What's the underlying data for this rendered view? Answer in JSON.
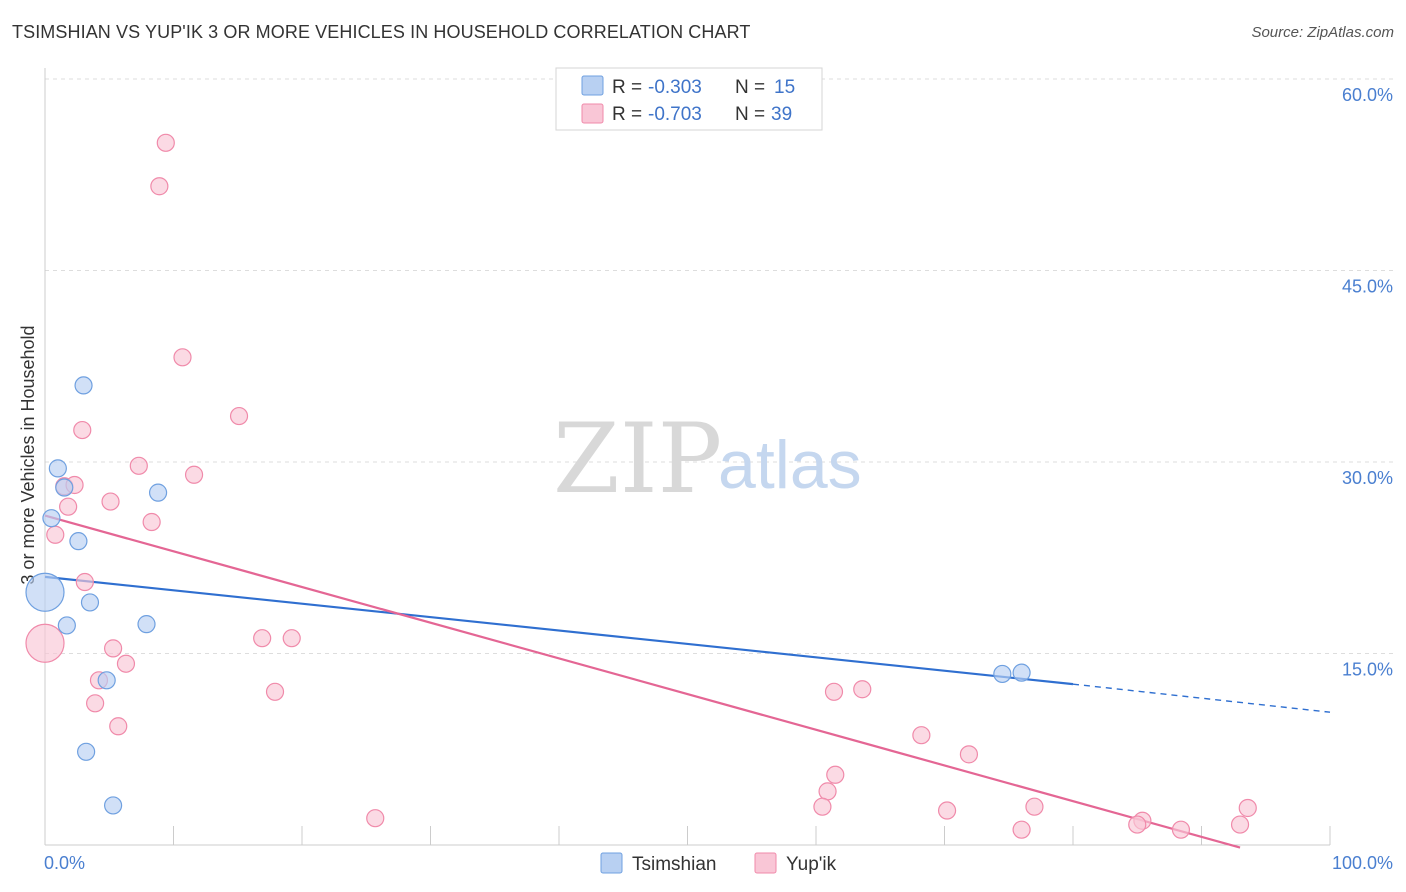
{
  "title": "TSIMSHIAN VS YUP'IK 3 OR MORE VEHICLES IN HOUSEHOLD CORRELATION CHART",
  "source": "Source: ZipAtlas.com",
  "watermark": {
    "part1": "ZIP",
    "part2": "atlas"
  },
  "colors": {
    "tsimshian": "#6fa0e0",
    "tsimshian_fill": "#b8d0f2",
    "tsimshian_line": "#2f6fd0",
    "yupik": "#f08aaa",
    "yupik_fill": "#f9c6d6",
    "yupik_line": "#e46694",
    "axis_label": "#4a7fd0"
  },
  "legend": {
    "rows": [
      {
        "r_label": "R = ",
        "r_value": "-0.303",
        "n_label": "N = ",
        "n_value": "15"
      },
      {
        "r_label": "R = ",
        "r_value": "-0.703",
        "n_label": "N = ",
        "n_value": "39"
      }
    ]
  },
  "chart_data": {
    "type": "scatter",
    "title": "TSIMSHIAN VS YUP'IK 3 OR MORE VEHICLES IN HOUSEHOLD CORRELATION CHART",
    "xlabel": "",
    "ylabel": "3 or more Vehicles in Household",
    "xlim": [
      0,
      100
    ],
    "ylim": [
      0,
      60
    ],
    "x_tick_labels": [
      "0.0%",
      "100.0%"
    ],
    "y_ticks": [
      15,
      30,
      45,
      60
    ],
    "y_tick_labels": [
      "15.0%",
      "30.0%",
      "45.0%",
      "60.0%"
    ],
    "grid": true,
    "legend_position": "top-center",
    "series": [
      {
        "name": "Tsimshian",
        "r": -0.303,
        "n": 15,
        "points": [
          {
            "x": 3.0,
            "y": 36.0,
            "big": false
          },
          {
            "x": 1.0,
            "y": 29.5,
            "big": false
          },
          {
            "x": 1.5,
            "y": 28.0,
            "big": false
          },
          {
            "x": 8.8,
            "y": 27.6,
            "big": false
          },
          {
            "x": 0.5,
            "y": 25.6,
            "big": false
          },
          {
            "x": 2.6,
            "y": 23.8,
            "big": false
          },
          {
            "x": 0.0,
            "y": 19.8,
            "big": true
          },
          {
            "x": 3.5,
            "y": 19.0,
            "big": false
          },
          {
            "x": 1.7,
            "y": 17.2,
            "big": false
          },
          {
            "x": 7.9,
            "y": 17.3,
            "big": false
          },
          {
            "x": 4.8,
            "y": 12.9,
            "big": false
          },
          {
            "x": 3.2,
            "y": 7.3,
            "big": false
          },
          {
            "x": 5.3,
            "y": 3.1,
            "big": false
          },
          {
            "x": 74.5,
            "y": 13.4,
            "big": false
          },
          {
            "x": 76.0,
            "y": 13.5,
            "big": false
          }
        ],
        "trend": {
          "x0": 0,
          "y0": 21.0,
          "x1": 80,
          "y1": 12.6,
          "dash_to_x": 100,
          "dash_to_y": 10.4
        }
      },
      {
        "name": "Yup'ik",
        "r": -0.703,
        "n": 39,
        "points": [
          {
            "x": 9.4,
            "y": 55.0,
            "big": false
          },
          {
            "x": 8.9,
            "y": 51.6,
            "big": false
          },
          {
            "x": 10.7,
            "y": 38.2,
            "big": false
          },
          {
            "x": 15.1,
            "y": 33.6,
            "big": false
          },
          {
            "x": 2.9,
            "y": 32.5,
            "big": false
          },
          {
            "x": 7.3,
            "y": 29.7,
            "big": false
          },
          {
            "x": 11.6,
            "y": 29.0,
            "big": false
          },
          {
            "x": 1.5,
            "y": 28.1,
            "big": false
          },
          {
            "x": 2.3,
            "y": 28.2,
            "big": false
          },
          {
            "x": 5.1,
            "y": 26.9,
            "big": false
          },
          {
            "x": 1.8,
            "y": 26.5,
            "big": false
          },
          {
            "x": 8.3,
            "y": 25.3,
            "big": false
          },
          {
            "x": 0.8,
            "y": 24.3,
            "big": false
          },
          {
            "x": 3.1,
            "y": 20.6,
            "big": false
          },
          {
            "x": 0.0,
            "y": 15.8,
            "big": true
          },
          {
            "x": 16.9,
            "y": 16.2,
            "big": false
          },
          {
            "x": 19.2,
            "y": 16.2,
            "big": false
          },
          {
            "x": 5.3,
            "y": 15.4,
            "big": false
          },
          {
            "x": 6.3,
            "y": 14.2,
            "big": false
          },
          {
            "x": 4.2,
            "y": 12.9,
            "big": false
          },
          {
            "x": 17.9,
            "y": 12.0,
            "big": false
          },
          {
            "x": 3.9,
            "y": 11.1,
            "big": false
          },
          {
            "x": 5.7,
            "y": 9.3,
            "big": false
          },
          {
            "x": 61.4,
            "y": 12.0,
            "big": false
          },
          {
            "x": 63.6,
            "y": 12.2,
            "big": false
          },
          {
            "x": 68.2,
            "y": 8.6,
            "big": false
          },
          {
            "x": 71.9,
            "y": 7.1,
            "big": false
          },
          {
            "x": 61.5,
            "y": 5.5,
            "big": false
          },
          {
            "x": 60.9,
            "y": 4.2,
            "big": false
          },
          {
            "x": 60.5,
            "y": 3.0,
            "big": false
          },
          {
            "x": 25.7,
            "y": 2.1,
            "big": false
          },
          {
            "x": 70.2,
            "y": 2.7,
            "big": false
          },
          {
            "x": 77.0,
            "y": 3.0,
            "big": false
          },
          {
            "x": 76.0,
            "y": 1.2,
            "big": false
          },
          {
            "x": 85.4,
            "y": 1.9,
            "big": false
          },
          {
            "x": 85.0,
            "y": 1.6,
            "big": false
          },
          {
            "x": 88.4,
            "y": 1.2,
            "big": false
          },
          {
            "x": 93.6,
            "y": 2.9,
            "big": false
          },
          {
            "x": 93.0,
            "y": 1.6,
            "big": false
          }
        ],
        "trend": {
          "x0": 0,
          "y0": 25.8,
          "x1": 93,
          "y1": -0.2
        }
      }
    ]
  },
  "bottom_legend": [
    {
      "label": "Tsimshian"
    },
    {
      "label": "Yup'ik"
    }
  ]
}
